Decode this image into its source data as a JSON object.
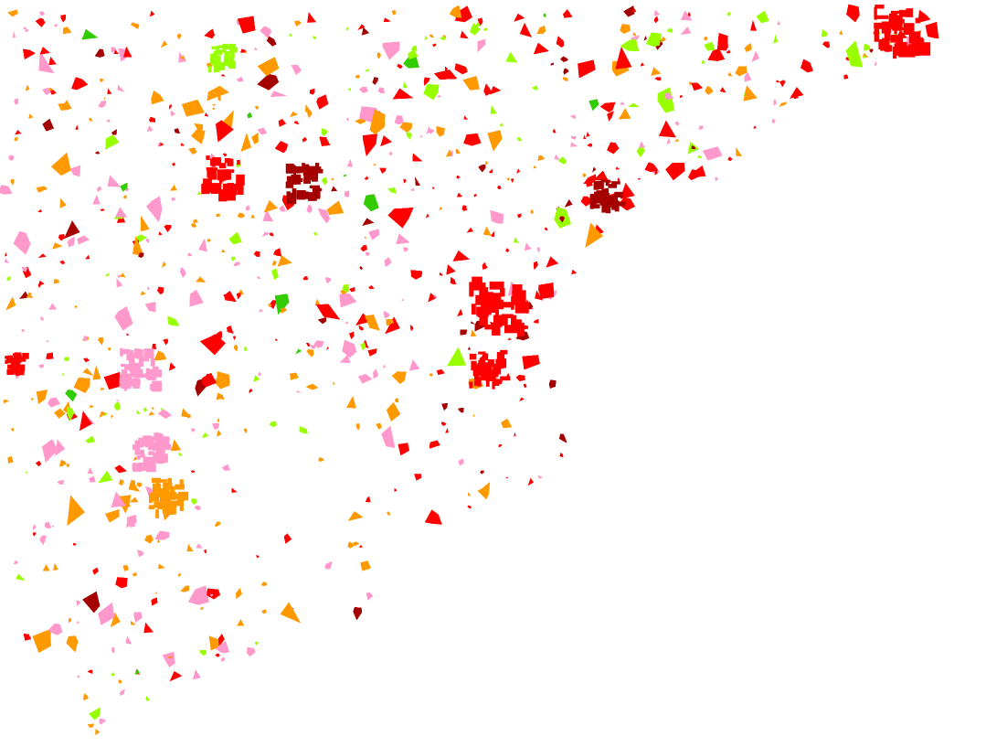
{
  "map": {
    "background": "#ffffff",
    "palette": {
      "red": "#ff0000",
      "dark_red": "#a50000",
      "orange": "#ff9900",
      "pink": "#ff99cc",
      "lime": "#99ff00",
      "green": "#33cc00"
    }
  }
}
